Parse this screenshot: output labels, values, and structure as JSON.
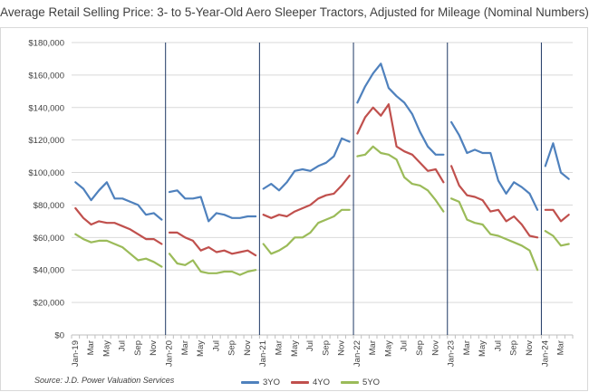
{
  "chart_data": {
    "type": "line",
    "title": "Average Retail Selling Price: 3- to 5-Year-Old Aero Sleeper Tractors, Adjusted for Mileage (Nominal Numbers)",
    "source": "Source: J.D. Power Valuation Services",
    "xlabel": "",
    "ylabel": "",
    "ylim": [
      0,
      180000
    ],
    "y_ticks": [
      "$0",
      "$20,000",
      "$40,000",
      "$60,000",
      "$80,000",
      "$100,000",
      "$120,000",
      "$140,000",
      "$160,000",
      "$180,000"
    ],
    "gridlines": true,
    "legend_position": "bottom",
    "x": [
      "Jan-19",
      "Feb-19",
      "Mar-19",
      "Apr-19",
      "May-19",
      "Jun-19",
      "Jul-19",
      "Aug-19",
      "Sep-19",
      "Oct-19",
      "Nov-19",
      "Dec-19",
      "Jan-20",
      "Feb-20",
      "Mar-20",
      "Apr-20",
      "May-20",
      "Jun-20",
      "Jul-20",
      "Aug-20",
      "Sep-20",
      "Oct-20",
      "Nov-20",
      "Dec-20",
      "Jan-21",
      "Feb-21",
      "Mar-21",
      "Apr-21",
      "May-21",
      "Jun-21",
      "Jul-21",
      "Aug-21",
      "Sep-21",
      "Oct-21",
      "Nov-21",
      "Dec-21",
      "Jan-22",
      "Feb-22",
      "Mar-22",
      "Apr-22",
      "May-22",
      "Jun-22",
      "Jul-22",
      "Aug-22",
      "Sep-22",
      "Oct-22",
      "Nov-22",
      "Dec-22",
      "Jan-23",
      "Feb-23",
      "Mar-23",
      "Apr-23",
      "May-23",
      "Jun-23",
      "Jul-23",
      "Aug-23",
      "Sep-23",
      "Oct-23",
      "Nov-23",
      "Dec-23",
      "Jan-24",
      "Feb-24",
      "Mar-24",
      "Apr-24"
    ],
    "tick_labels": [
      "Jan-19",
      "Mar",
      "May",
      "Jul",
      "Sep",
      "Nov",
      "Jan-20",
      "Mar",
      "May",
      "Jul",
      "Sep",
      "Nov",
      "Jan-21",
      "Mar",
      "May",
      "Jul",
      "Sep",
      "Nov",
      "Jan-22",
      "Mar",
      "May",
      "Jul",
      "Sep",
      "Nov",
      "Jan-23",
      "Mar",
      "May",
      "Jul",
      "Sep",
      "Nov",
      "Jan-24",
      "Mar"
    ],
    "tick_label_index": [
      0,
      2,
      4,
      6,
      8,
      10,
      12,
      14,
      16,
      18,
      20,
      22,
      24,
      26,
      28,
      30,
      32,
      34,
      36,
      38,
      40,
      42,
      44,
      46,
      48,
      50,
      52,
      54,
      56,
      58,
      60,
      62
    ],
    "year_dividers": [
      12,
      24,
      36,
      48,
      60
    ],
    "series": [
      {
        "name": "3YO",
        "color": "#4f81bd",
        "values": [
          [
            94000,
            90000,
            83000,
            89000,
            94000,
            84000,
            84000,
            82000,
            80000,
            74000,
            75000,
            71000
          ],
          [
            88000,
            89000,
            84000,
            84000,
            85000,
            70000,
            75000,
            74000,
            72000,
            72000,
            73000,
            73000
          ],
          [
            90000,
            93000,
            89000,
            94000,
            101000,
            102000,
            101000,
            104000,
            106000,
            110000,
            121000,
            119000
          ],
          [
            143000,
            153000,
            161000,
            167000,
            152000,
            147000,
            143000,
            136000,
            125000,
            116000,
            111000,
            111000
          ],
          [
            131000,
            123000,
            112000,
            114000,
            112000,
            112000,
            95000,
            87000,
            94000,
            91000,
            87000,
            77000
          ],
          [
            104000,
            118000,
            100000,
            96000
          ]
        ]
      },
      {
        "name": "4YO",
        "color": "#c0504d",
        "values": [
          [
            78000,
            72000,
            68000,
            70000,
            69000,
            69000,
            67000,
            65000,
            62000,
            59000,
            59000,
            56000
          ],
          [
            63000,
            63000,
            60000,
            58000,
            52000,
            54000,
            51000,
            52000,
            50000,
            51000,
            52000,
            49000
          ],
          [
            74000,
            72000,
            74000,
            73000,
            76000,
            78000,
            80000,
            84000,
            86000,
            87000,
            92000,
            98000
          ],
          [
            124000,
            134000,
            140000,
            135000,
            142000,
            116000,
            113000,
            111000,
            106000,
            101000,
            102000,
            94000
          ],
          [
            104000,
            92000,
            86000,
            85000,
            83000,
            76000,
            77000,
            70000,
            73000,
            68000,
            61000,
            60000
          ],
          [
            77000,
            77000,
            70000,
            74000
          ]
        ]
      },
      {
        "name": "5YO",
        "color": "#9bbb59",
        "values": [
          [
            62000,
            59000,
            57000,
            58000,
            58000,
            56000,
            54000,
            50000,
            46000,
            47000,
            45000,
            42000
          ],
          [
            50000,
            44000,
            43000,
            46000,
            39000,
            38000,
            38000,
            39000,
            39000,
            37000,
            39000,
            40000
          ],
          [
            56000,
            50000,
            52000,
            55000,
            60000,
            60000,
            63000,
            69000,
            71000,
            73000,
            77000,
            77000
          ],
          [
            110000,
            111000,
            116000,
            112000,
            111000,
            108000,
            97000,
            93000,
            92000,
            89000,
            83000,
            76000
          ],
          [
            84000,
            82000,
            71000,
            69000,
            68000,
            62000,
            61000,
            59000,
            57000,
            55000,
            52000,
            40000
          ],
          [
            64000,
            61000,
            55000,
            56000
          ]
        ]
      }
    ]
  }
}
